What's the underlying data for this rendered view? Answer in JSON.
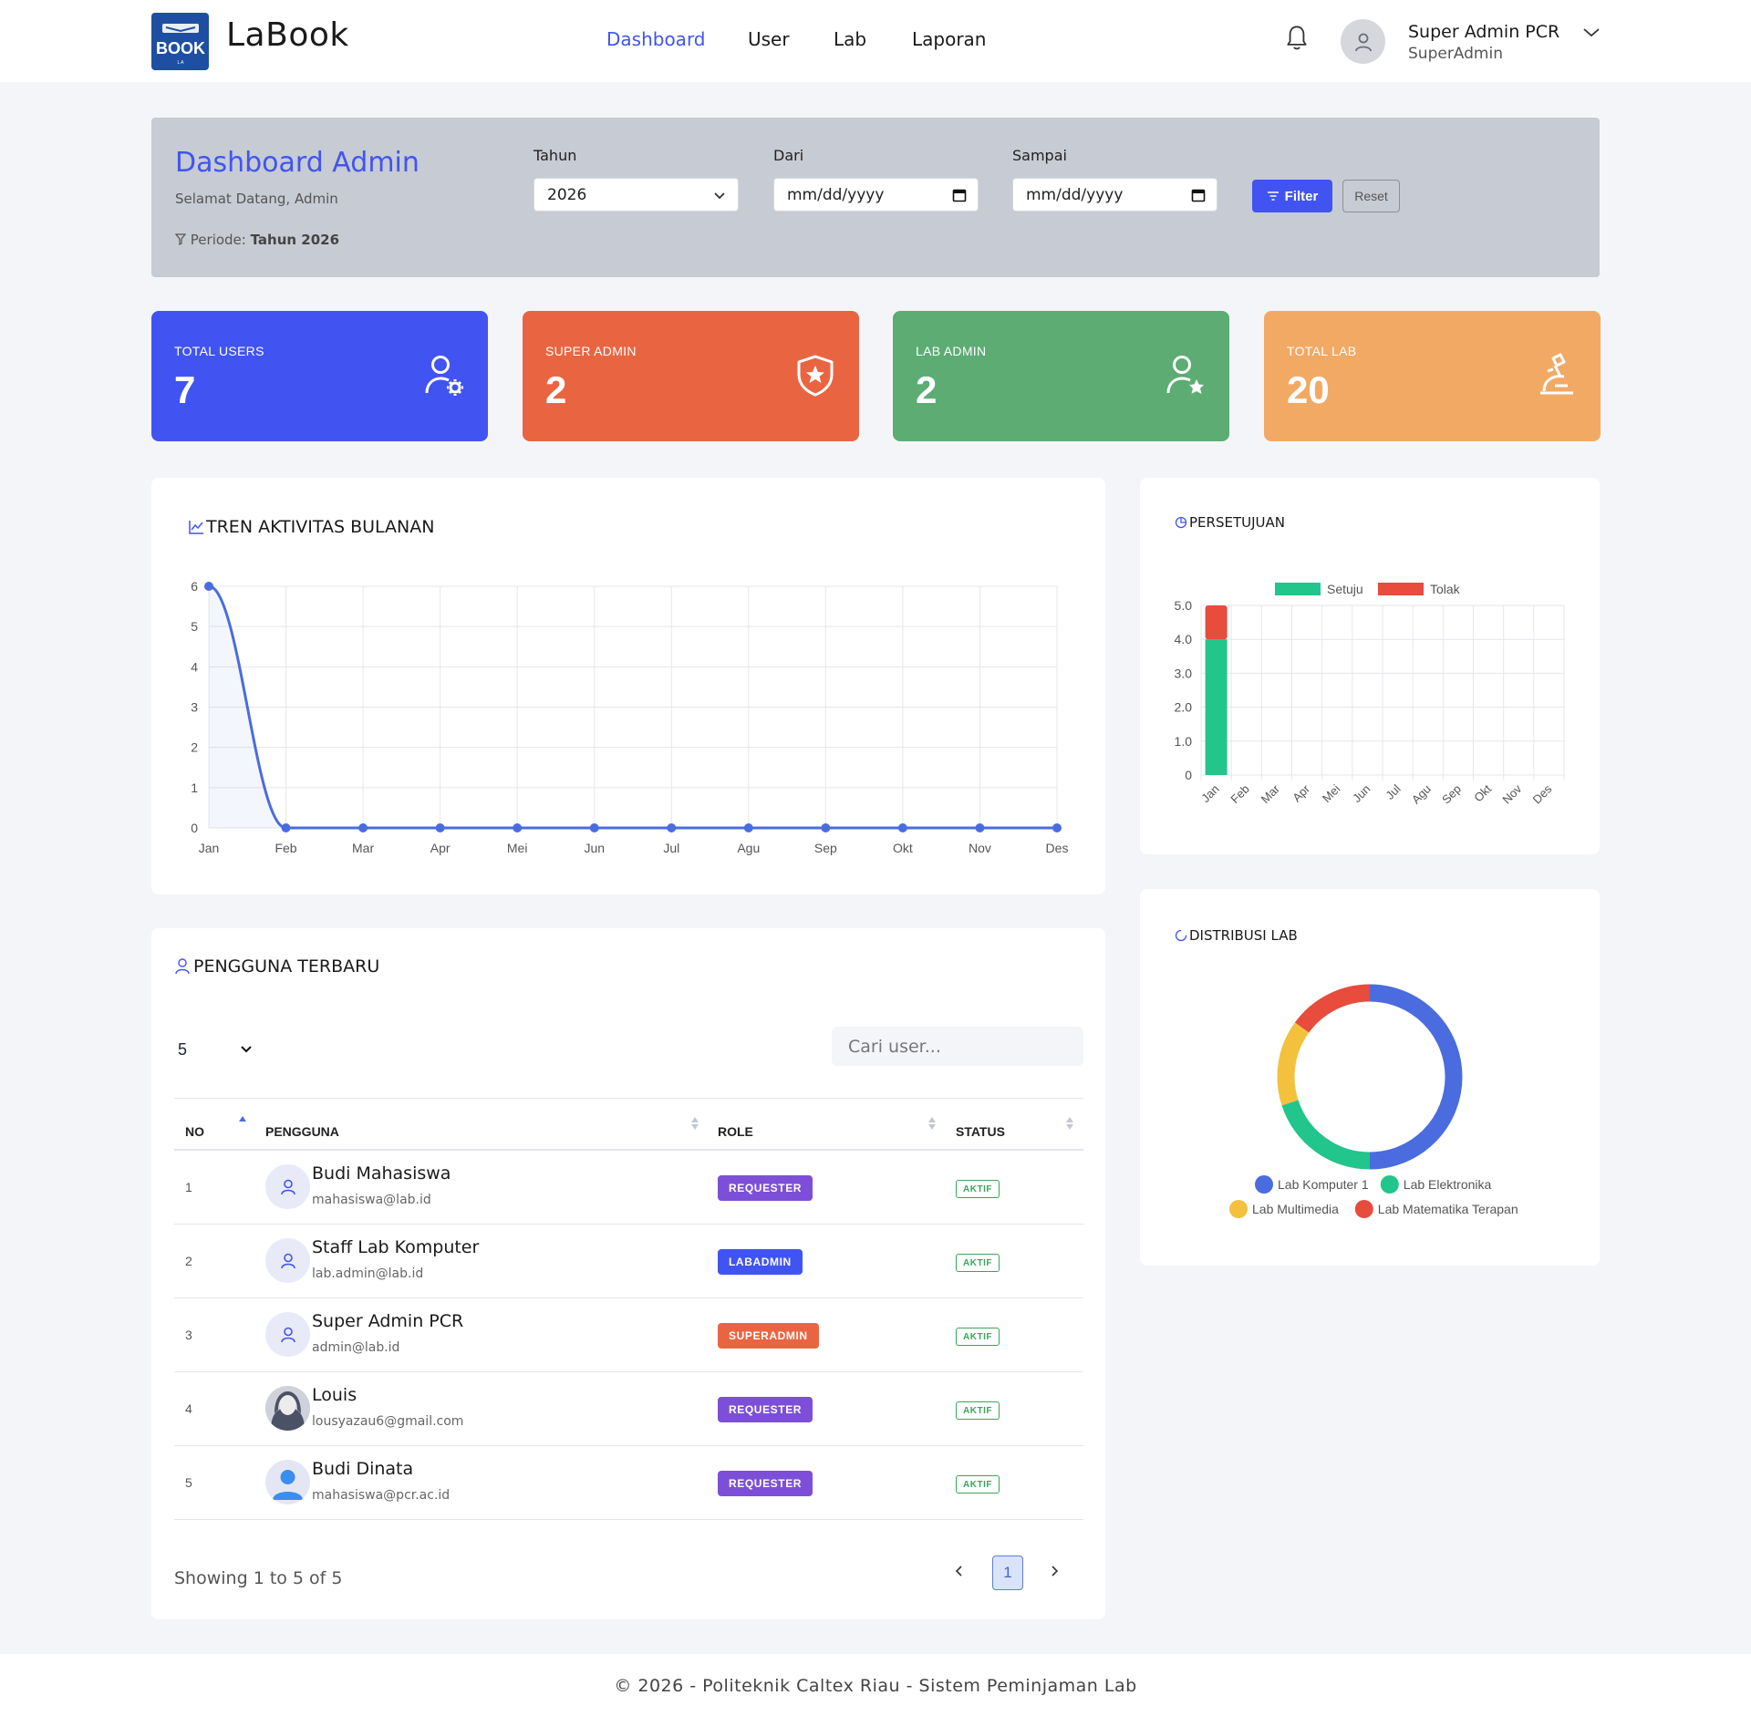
{
  "app": {
    "brand": "LaBook",
    "logo_text": "BOOK",
    "logo_small": "L A"
  },
  "nav": {
    "items": [
      {
        "label": "Dashboard",
        "active": true
      },
      {
        "label": "User",
        "active": false
      },
      {
        "label": "Lab",
        "active": false
      },
      {
        "label": "Laporan",
        "active": false
      }
    ]
  },
  "user": {
    "name": "Super Admin PCR",
    "role": "SuperAdmin"
  },
  "header": {
    "title": "Dashboard Admin",
    "subtitle": "Selamat Datang, Admin",
    "period_label": "Periode:",
    "period_value": "Tahun 2026",
    "filters": {
      "year_label": "Tahun",
      "year_value": "2026",
      "from_label": "Dari",
      "from_placeholder": "mm/dd/yyyy",
      "to_label": "Sampai",
      "to_placeholder": "mm/dd/yyyy",
      "filter_button": "Filter",
      "reset_button": "Reset"
    }
  },
  "stats": [
    {
      "label": "TOTAL USERS",
      "value": "7",
      "color": "#4154f1",
      "icon": "user-gear-icon"
    },
    {
      "label": "SUPER ADMIN",
      "value": "2",
      "color": "#e96542",
      "icon": "shield-star-icon"
    },
    {
      "label": "LAB ADMIN",
      "value": "2",
      "color": "#5cac73",
      "icon": "user-star-icon"
    },
    {
      "label": "TOTAL LAB",
      "value": "20",
      "color": "#f2a964",
      "icon": "microscope-icon"
    }
  ],
  "trend": {
    "title": "TREN AKTIVITAS BULANAN",
    "icon": "line-chart-icon"
  },
  "approval": {
    "title": "PERSETUJUAN",
    "icon": "pie-chart-icon"
  },
  "distribution": {
    "title": "DISTRIBUSI LAB",
    "icon": "donut-icon"
  },
  "chart_data": [
    {
      "type": "line",
      "title": "TREN AKTIVITAS BULANAN",
      "categories": [
        "Jan",
        "Feb",
        "Mar",
        "Apr",
        "Mei",
        "Jun",
        "Jul",
        "Agu",
        "Sep",
        "Okt",
        "Nov",
        "Des"
      ],
      "values": [
        6,
        0,
        0,
        0,
        0,
        0,
        0,
        0,
        0,
        0,
        0,
        0
      ],
      "ylim": [
        0,
        6
      ],
      "yticks": [
        0,
        1,
        2,
        3,
        4,
        5,
        6
      ],
      "grid": true,
      "color": "#4a6cdf"
    },
    {
      "type": "bar",
      "stacked": true,
      "title": "PERSETUJUAN",
      "categories": [
        "Jan",
        "Feb",
        "Mar",
        "Apr",
        "Mei",
        "Jun",
        "Jul",
        "Agu",
        "Sep",
        "Okt",
        "Nov",
        "Des"
      ],
      "series": [
        {
          "name": "Setuju",
          "color": "#22c58b",
          "values": [
            4,
            0,
            0,
            0,
            0,
            0,
            0,
            0,
            0,
            0,
            0,
            0
          ]
        },
        {
          "name": "Tolak",
          "color": "#e74c3c",
          "values": [
            1,
            0,
            0,
            0,
            0,
            0,
            0,
            0,
            0,
            0,
            0,
            0
          ]
        }
      ],
      "ylim": [
        0,
        5
      ],
      "yticks": [
        "0",
        "1.0",
        "2.0",
        "3.0",
        "4.0",
        "5.0"
      ],
      "legend": "top",
      "grid": true
    },
    {
      "type": "pie",
      "donut": true,
      "title": "DISTRIBUSI LAB",
      "series": [
        {
          "name": "Lab Komputer 1",
          "value": 50,
          "color": "#4a6cdf"
        },
        {
          "name": "Lab Elektronika",
          "value": 20,
          "color": "#22c58b"
        },
        {
          "name": "Lab Multimedia",
          "value": 15,
          "color": "#f4c13d"
        },
        {
          "name": "Lab Matematika Terapan",
          "value": 15,
          "color": "#e74c3c"
        }
      ],
      "legend": "bottom"
    }
  ],
  "users_table": {
    "title": "PENGGUNA TERBARU",
    "page_size": "5",
    "search_placeholder": "Cari user...",
    "columns": [
      "NO",
      "PENGGUNA",
      "ROLE",
      "STATUS"
    ],
    "rows": [
      {
        "no": "1",
        "name": "Budi Mahasiswa",
        "email": "mahasiswa@lab.id",
        "role": "REQUESTER",
        "role_color": "#7d4fd8",
        "status": "AKTIF",
        "avatar": "default"
      },
      {
        "no": "2",
        "name": "Staff Lab Komputer",
        "email": "lab.admin@lab.id",
        "role": "LABADMIN",
        "role_color": "#4154f1",
        "status": "AKTIF",
        "avatar": "default"
      },
      {
        "no": "3",
        "name": "Super Admin PCR",
        "email": "admin@lab.id",
        "role": "SUPERADMIN",
        "role_color": "#e96542",
        "status": "AKTIF",
        "avatar": "default"
      },
      {
        "no": "4",
        "name": "Louis",
        "email": "lousyazau6@gmail.com",
        "role": "REQUESTER",
        "role_color": "#7d4fd8",
        "status": "AKTIF",
        "avatar": "photo"
      },
      {
        "no": "5",
        "name": "Budi Dinata",
        "email": "mahasiswa@pcr.ac.id",
        "role": "REQUESTER",
        "role_color": "#7d4fd8",
        "status": "AKTIF",
        "avatar": "blue"
      }
    ],
    "showing": "Showing 1 to 5 of 5",
    "current_page": "1"
  },
  "footer": {
    "text": "© 2026 - Politeknik Caltex Riau - Sistem Peminjaman Lab"
  }
}
